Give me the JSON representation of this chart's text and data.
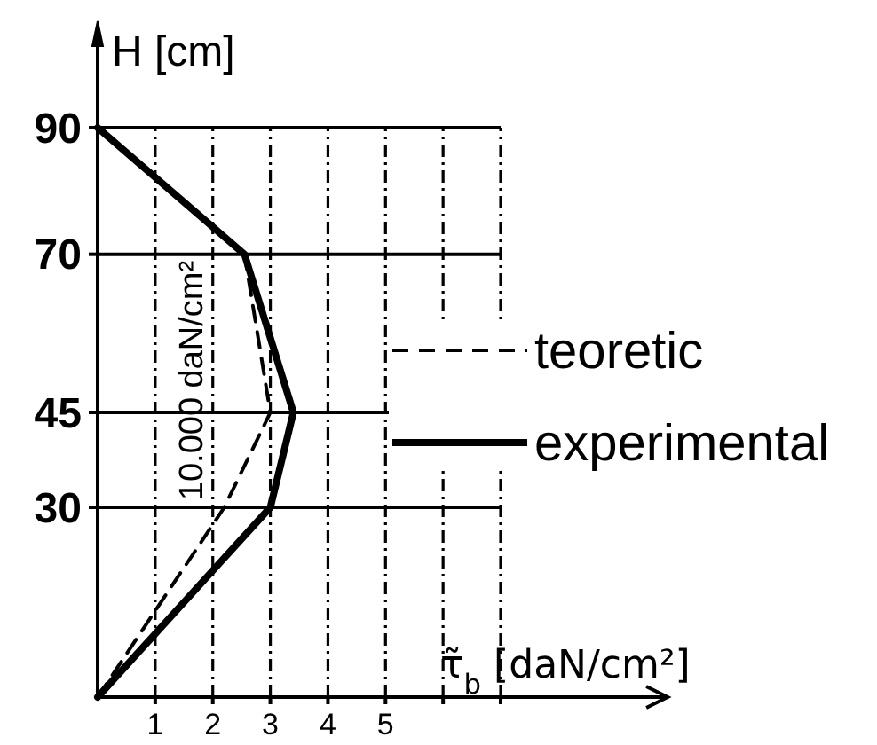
{
  "chart_data": {
    "type": "line",
    "xlabel": "τ̃$_{b}$ [daN/cm²]",
    "ylabel": "H [cm]",
    "xlim": [
      0,
      9.9
    ],
    "xticks": [
      1,
      2,
      3,
      4,
      5,
      {
        "value": 6,
        "label": null
      },
      {
        "value": 7,
        "label": null
      }
    ],
    "ylim": [
      0,
      90
    ],
    "yticks": [
      30,
      45,
      70,
      90
    ],
    "grid": true,
    "legend": "right",
    "series": [
      {
        "name": "teoretic",
        "color": "#000000",
        "line_style": "dashed",
        "x": [
          0,
          2.2,
          3.0,
          2.55
        ],
        "values": [
          0,
          30,
          45,
          70
        ]
      },
      {
        "name": "experimental",
        "color": "#000000",
        "line_style": "solid",
        "x": [
          0,
          3.0,
          3.4,
          2.55,
          0
        ],
        "values": [
          0,
          30,
          45,
          70,
          90
        ]
      }
    ],
    "annotations": [
      {
        "text": "10.000 daN/cm²",
        "x": 3.0,
        "y": 45
      }
    ]
  }
}
